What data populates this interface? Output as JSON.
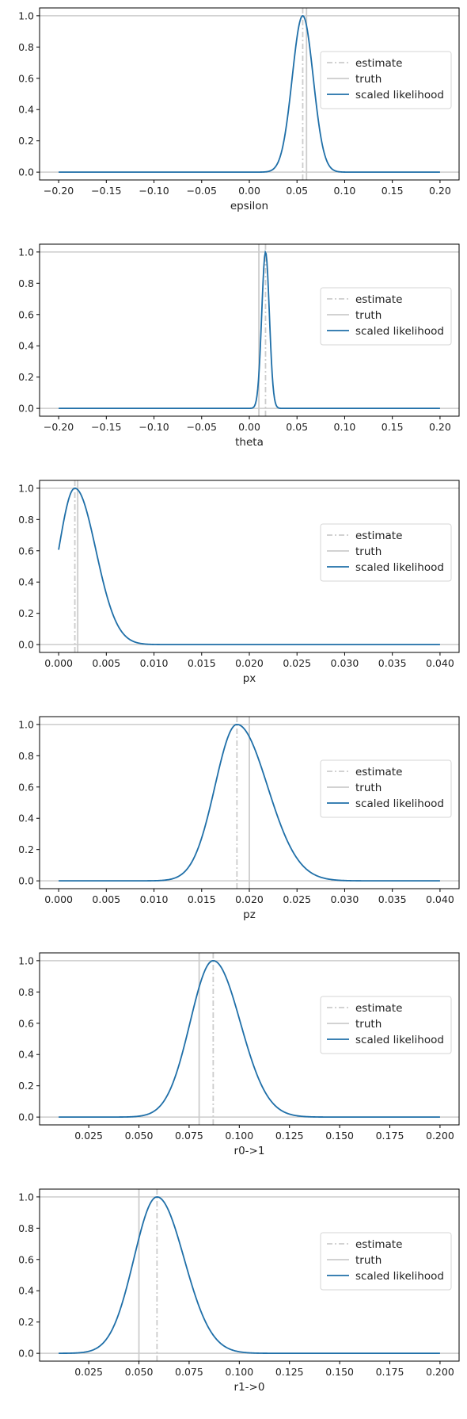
{
  "chart_data": [
    {
      "type": "line",
      "xlabel": "epsilon",
      "xlim": [
        -0.22,
        0.22
      ],
      "ylim": [
        -0.05,
        1.05
      ],
      "xticks": [
        -0.2,
        -0.15,
        -0.1,
        -0.05,
        0.0,
        0.05,
        0.1,
        0.15,
        0.2
      ],
      "xtick_labels": [
        "−0.20",
        "−0.15",
        "−0.10",
        "−0.05",
        "0.00",
        "0.05",
        "0.10",
        "0.15",
        "0.20"
      ],
      "yticks": [
        0.0,
        0.2,
        0.4,
        0.6,
        0.8,
        1.0
      ],
      "ytick_labels": [
        "0.0",
        "0.2",
        "0.4",
        "0.6",
        "0.8",
        "1.0"
      ],
      "likelihood": {
        "domain": [
          -0.2,
          0.2
        ],
        "peak": 0.056,
        "sigma_left": 0.011,
        "sigma_right": 0.011
      },
      "estimate": 0.056,
      "truth": 0.06,
      "legend": [
        "estimate",
        "truth",
        "scaled likelihood"
      ],
      "legend_loc": "center-right"
    },
    {
      "type": "line",
      "xlabel": "theta",
      "xlim": [
        -0.22,
        0.22
      ],
      "ylim": [
        -0.05,
        1.05
      ],
      "xticks": [
        -0.2,
        -0.15,
        -0.1,
        -0.05,
        0.0,
        0.05,
        0.1,
        0.15,
        0.2
      ],
      "xtick_labels": [
        "−0.20",
        "−0.15",
        "−0.10",
        "−0.05",
        "0.00",
        "0.05",
        "0.10",
        "0.15",
        "0.20"
      ],
      "yticks": [
        0.0,
        0.2,
        0.4,
        0.6,
        0.8,
        1.0
      ],
      "ytick_labels": [
        "0.0",
        "0.2",
        "0.4",
        "0.6",
        "0.8",
        "1.0"
      ],
      "likelihood": {
        "domain": [
          -0.2,
          0.2
        ],
        "peak": 0.017,
        "sigma_left": 0.004,
        "sigma_right": 0.004
      },
      "estimate": 0.017,
      "truth": 0.01,
      "legend": [
        "estimate",
        "truth",
        "scaled likelihood"
      ],
      "legend_loc": "center-right"
    },
    {
      "type": "line",
      "xlabel": "px",
      "xlim": [
        -0.002,
        0.042
      ],
      "ylim": [
        -0.05,
        1.05
      ],
      "xticks": [
        0.0,
        0.005,
        0.01,
        0.015,
        0.02,
        0.025,
        0.03,
        0.035,
        0.04
      ],
      "xtick_labels": [
        "0.000",
        "0.005",
        "0.010",
        "0.015",
        "0.020",
        "0.025",
        "0.030",
        "0.035",
        "0.040"
      ],
      "yticks": [
        0.0,
        0.2,
        0.4,
        0.6,
        0.8,
        1.0
      ],
      "ytick_labels": [
        "0.0",
        "0.2",
        "0.4",
        "0.6",
        "0.8",
        "1.0"
      ],
      "likelihood": {
        "domain": [
          0.0,
          0.04
        ],
        "peak": 0.0017,
        "sigma_left": 0.0017,
        "sigma_right": 0.0022
      },
      "estimate": 0.0017,
      "truth": 0.002,
      "legend": [
        "estimate",
        "truth",
        "scaled likelihood"
      ],
      "legend_loc": "center-right"
    },
    {
      "type": "line",
      "xlabel": "pz",
      "xlim": [
        -0.002,
        0.042
      ],
      "ylim": [
        -0.05,
        1.05
      ],
      "xticks": [
        0.0,
        0.005,
        0.01,
        0.015,
        0.02,
        0.025,
        0.03,
        0.035,
        0.04
      ],
      "xtick_labels": [
        "0.000",
        "0.005",
        "0.010",
        "0.015",
        "0.020",
        "0.025",
        "0.030",
        "0.035",
        "0.040"
      ],
      "yticks": [
        0.0,
        0.2,
        0.4,
        0.6,
        0.8,
        1.0
      ],
      "ytick_labels": [
        "0.0",
        "0.2",
        "0.4",
        "0.6",
        "0.8",
        "1.0"
      ],
      "likelihood": {
        "domain": [
          0.0,
          0.04
        ],
        "peak": 0.0187,
        "sigma_left": 0.0023,
        "sigma_right": 0.0032
      },
      "estimate": 0.0187,
      "truth": 0.02,
      "legend": [
        "estimate",
        "truth",
        "scaled likelihood"
      ],
      "legend_loc": "center-right"
    },
    {
      "type": "line",
      "xlabel": "r0->1",
      "xlim": [
        0.0005,
        0.2095
      ],
      "ylim": [
        -0.05,
        1.05
      ],
      "xticks": [
        0.025,
        0.05,
        0.075,
        0.1,
        0.125,
        0.15,
        0.175,
        0.2
      ],
      "xtick_labels": [
        "0.025",
        "0.050",
        "0.075",
        "0.100",
        "0.125",
        "0.150",
        "0.175",
        "0.200"
      ],
      "yticks": [
        0.0,
        0.2,
        0.4,
        0.6,
        0.8,
        1.0
      ],
      "ytick_labels": [
        "0.0",
        "0.2",
        "0.4",
        "0.6",
        "0.8",
        "1.0"
      ],
      "likelihood": {
        "domain": [
          0.01,
          0.2
        ],
        "peak": 0.087,
        "sigma_left": 0.0115,
        "sigma_right": 0.0135
      },
      "estimate": 0.087,
      "truth": 0.08,
      "legend": [
        "estimate",
        "truth",
        "scaled likelihood"
      ],
      "legend_loc": "center-right"
    },
    {
      "type": "line",
      "xlabel": "r1->0",
      "xlim": [
        0.0005,
        0.2095
      ],
      "ylim": [
        -0.05,
        1.05
      ],
      "xticks": [
        0.025,
        0.05,
        0.075,
        0.1,
        0.125,
        0.15,
        0.175,
        0.2
      ],
      "xtick_labels": [
        "0.025",
        "0.050",
        "0.075",
        "0.100",
        "0.125",
        "0.150",
        "0.175",
        "0.200"
      ],
      "yticks": [
        0.0,
        0.2,
        0.4,
        0.6,
        0.8,
        1.0
      ],
      "ytick_labels": [
        "0.0",
        "0.2",
        "0.4",
        "0.6",
        "0.8",
        "1.0"
      ],
      "likelihood": {
        "domain": [
          0.01,
          0.2
        ],
        "peak": 0.059,
        "sigma_left": 0.0115,
        "sigma_right": 0.0135
      },
      "estimate": 0.059,
      "truth": 0.05,
      "legend": [
        "estimate",
        "truth",
        "scaled likelihood"
      ],
      "legend_loc": "center-right"
    }
  ],
  "colors": {
    "likelihood": "#1f6fa8",
    "estimate": "#cccccc",
    "truth": "#cccccc",
    "reference_lines": "#cccccc",
    "axes": "#000000"
  }
}
